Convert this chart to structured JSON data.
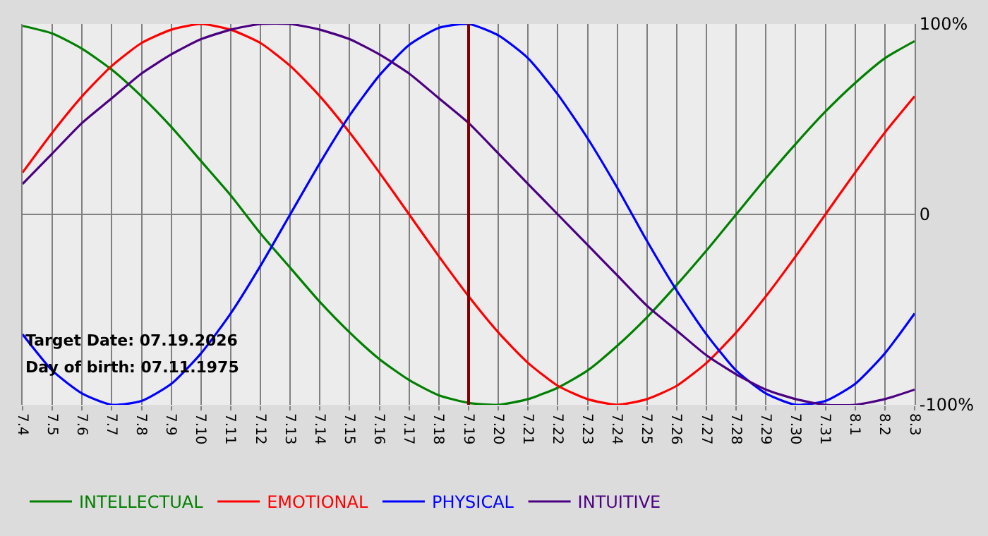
{
  "chart_data": {
    "type": "line",
    "categories": [
      "7.4",
      "7.5",
      "7.6",
      "7.7",
      "7.8",
      "7.9",
      "7.10",
      "7.11",
      "7.12",
      "7.13",
      "7.14",
      "7.15",
      "7.16",
      "7.17",
      "7.18",
      "7.19",
      "7.20",
      "7.21",
      "7.22",
      "7.23",
      "7.24",
      "7.25",
      "7.26",
      "7.27",
      "7.28",
      "7.29",
      "7.30",
      "7.31",
      "8.1",
      "8.2",
      "8.3"
    ],
    "series": [
      {
        "name": "INTELLECTUAL",
        "color": "#008000",
        "values": [
          99,
          95,
          87,
          76,
          62,
          46,
          28,
          10,
          -10,
          -28,
          -46,
          -62,
          -76,
          -87,
          -95,
          -99,
          -100,
          -97,
          -91,
          -82,
          -69,
          -54,
          -37,
          -19,
          0,
          19,
          37,
          54,
          69,
          82,
          91
        ]
      },
      {
        "name": "EMOTIONAL",
        "color": "#ff0000",
        "values": [
          22,
          43,
          62,
          78,
          90,
          97,
          100,
          97,
          90,
          78,
          62,
          43,
          22,
          0,
          -22,
          -43,
          -62,
          -78,
          -90,
          -97,
          -100,
          -97,
          -90,
          -78,
          -62,
          -43,
          -22,
          0,
          22,
          43,
          62
        ]
      },
      {
        "name": "PHYSICAL",
        "color": "#0000ff",
        "values": [
          -63,
          -82,
          -94,
          -100,
          -98,
          -89,
          -73,
          -52,
          -27,
          0,
          27,
          52,
          73,
          89,
          98,
          100,
          94,
          82,
          63,
          40,
          14,
          -14,
          -40,
          -63,
          -82,
          -94,
          -100,
          -98,
          -89,
          -73,
          -52
        ]
      },
      {
        "name": "INTUITIVE",
        "color": "#4b0082",
        "values": [
          16,
          32,
          48,
          61,
          74,
          84,
          92,
          97,
          100,
          100,
          97,
          92,
          84,
          74,
          61,
          48,
          32,
          16,
          0,
          -16,
          -32,
          -48,
          -61,
          -74,
          -84,
          -92,
          -97,
          -100,
          -100,
          -97,
          -92
        ]
      }
    ],
    "ylim": [
      -100,
      100
    ],
    "yticks": [
      {
        "value": 100,
        "label": "100%"
      },
      0,
      {
        "value": -100,
        "label": "-100%"
      }
    ],
    "ref_lines": [
      {
        "axis": "x",
        "value": "7.19",
        "color": "#800000"
      }
    ],
    "annotations": [
      "Target Date: 07.19.2026",
      "Day of birth: 07.11.1975"
    ],
    "grid": true,
    "legend": "bottom",
    "marker": "none",
    "line_style": "solid"
  }
}
